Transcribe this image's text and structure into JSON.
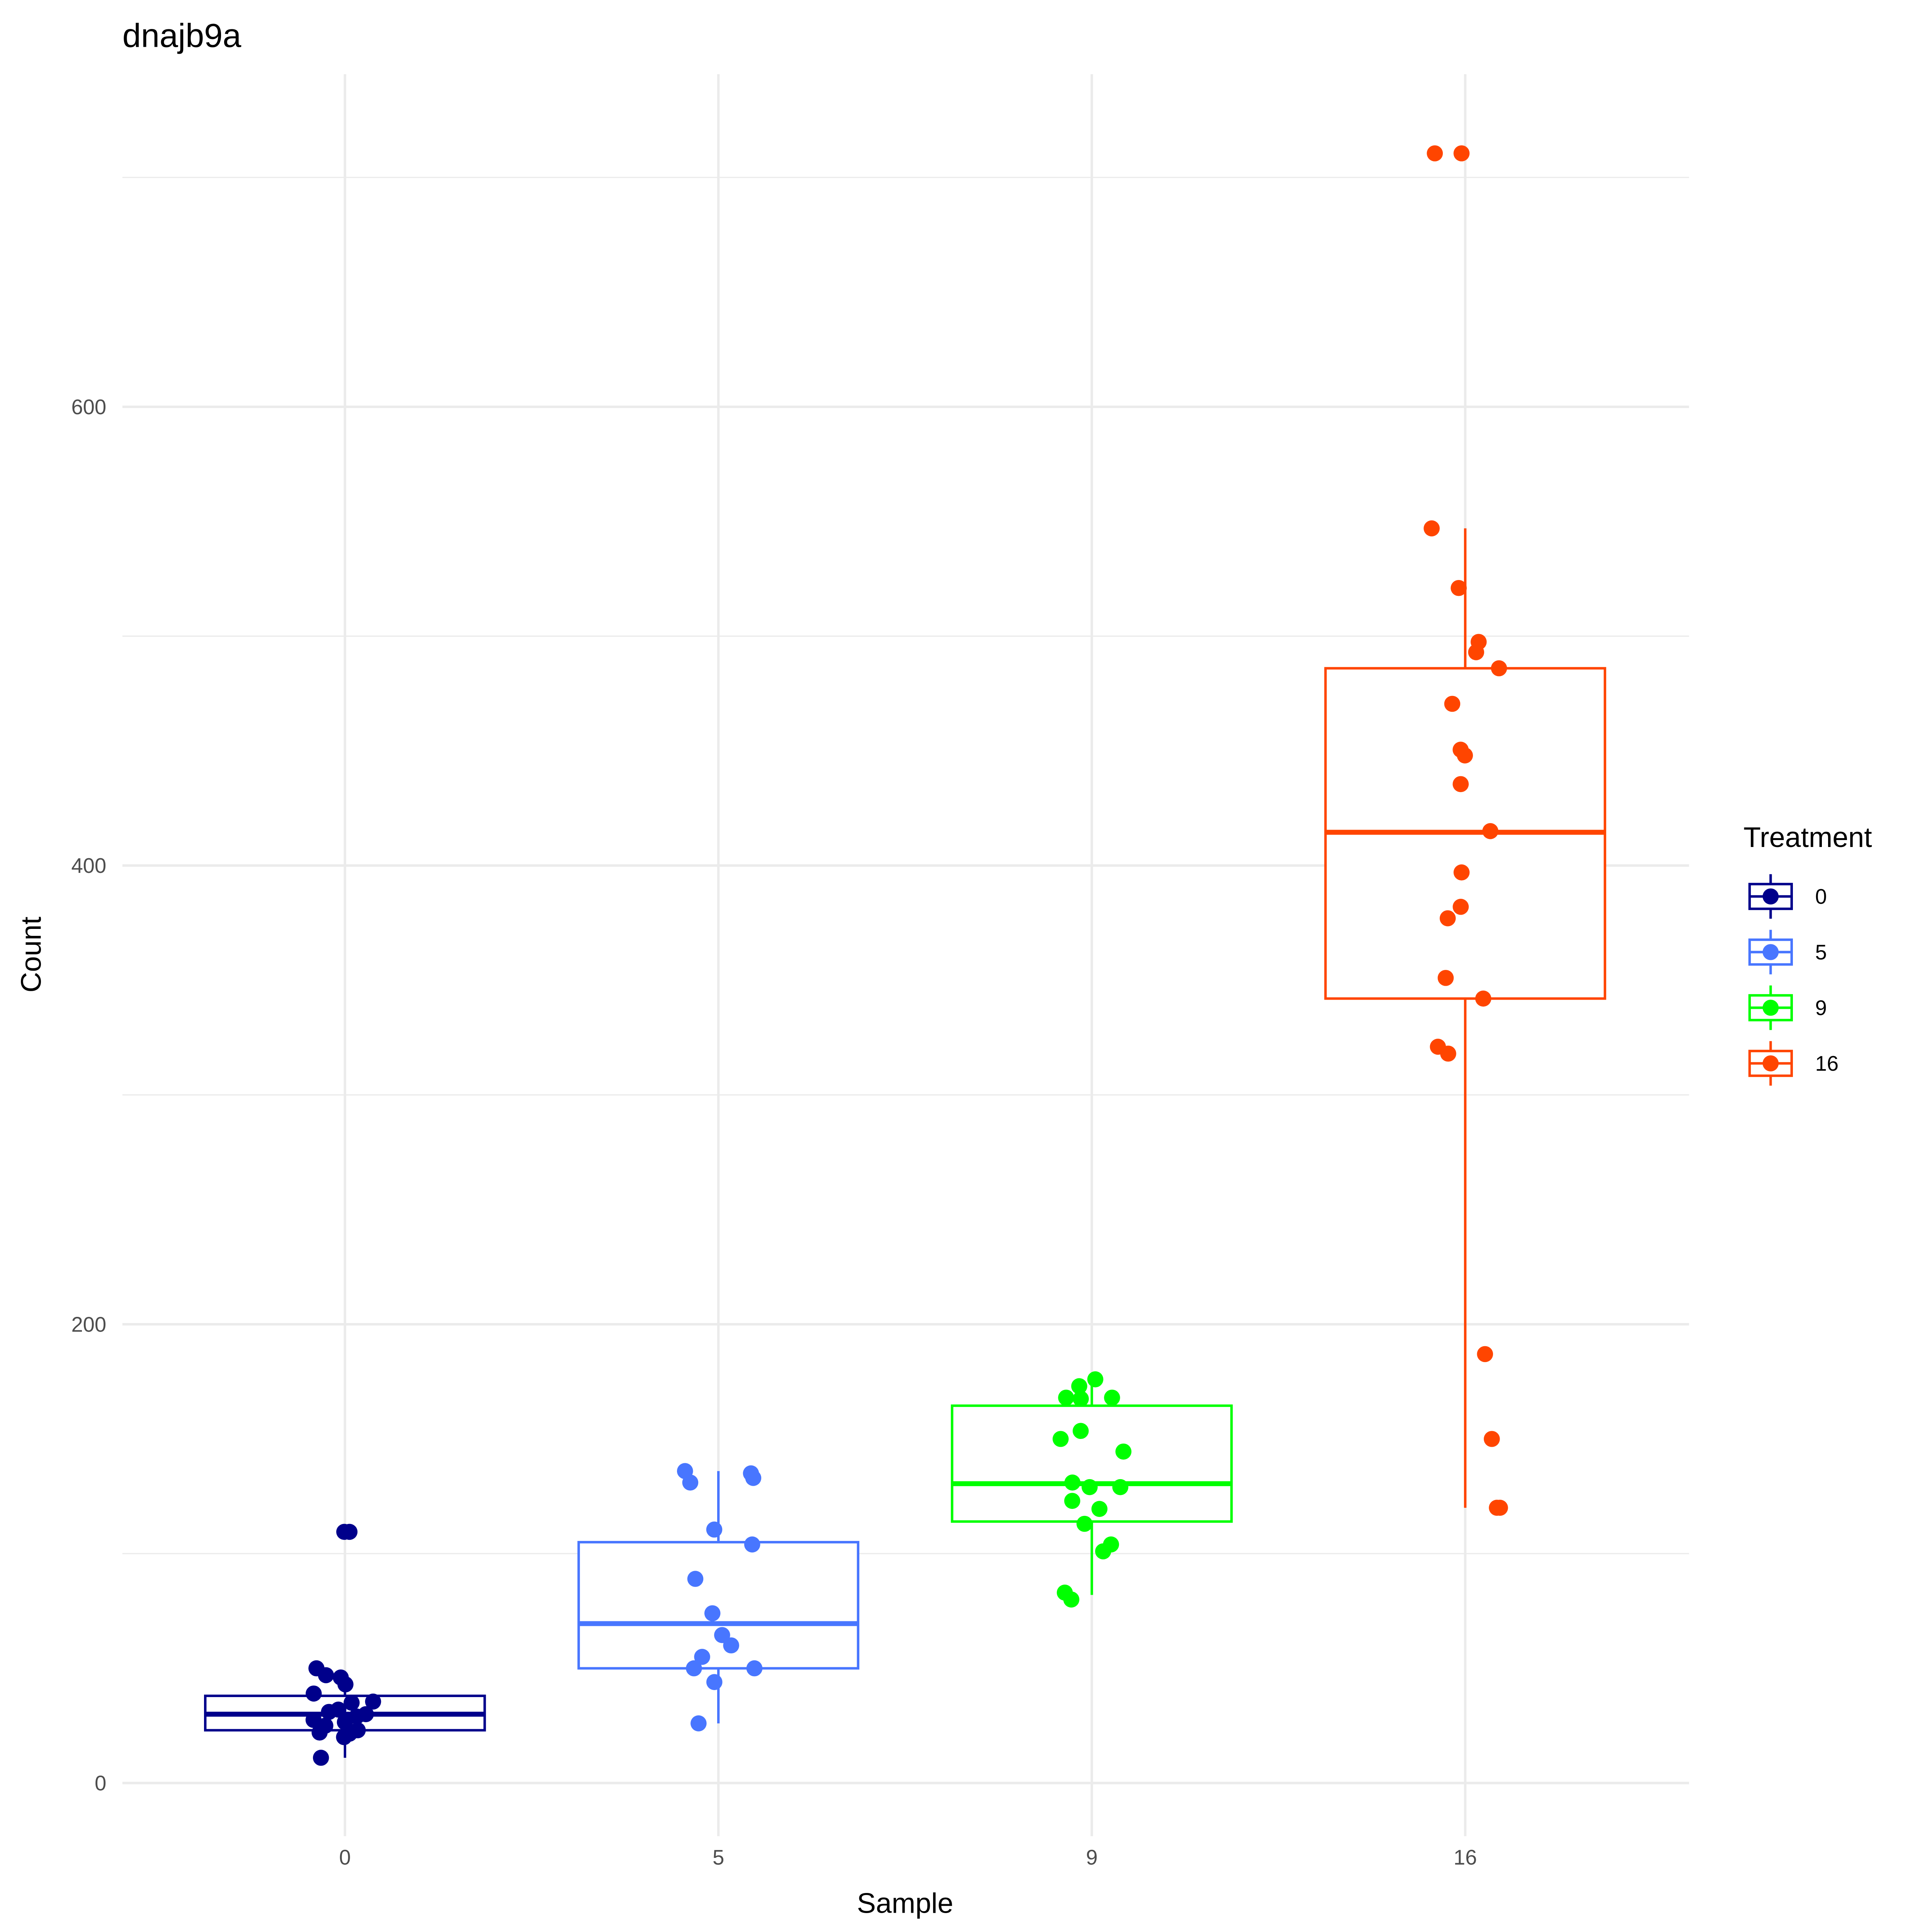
{
  "chart_data": {
    "type": "box",
    "title": "dnajb9a",
    "xlabel": "Sample",
    "ylabel": "Count",
    "ylim": [
      -25,
      765
    ],
    "y_major_ticks": [
      0,
      200,
      400,
      600
    ],
    "y_minor_ticks": [
      100,
      300,
      500,
      700
    ],
    "y_tick_labels": [
      "0",
      "200",
      "400",
      "600"
    ],
    "categories": [
      "0",
      "5",
      "9",
      "16"
    ],
    "grid": true,
    "legend": {
      "title": "Treatment",
      "position": "right",
      "entries": [
        "0",
        "5",
        "9",
        "16"
      ]
    },
    "series": [
      {
        "name": "0",
        "color": "#00008B",
        "box": {
          "lower_whisker": 11,
          "q1": 23,
          "median": 30,
          "q3": 38,
          "upper_whisker": 46
        },
        "points": [
          109.5,
          109.5,
          50,
          47,
          46,
          43,
          39,
          35.5,
          35,
          32,
          31,
          30,
          29,
          27.5,
          26.5,
          25,
          23,
          22,
          21.5,
          20,
          11
        ]
      },
      {
        "name": "5",
        "color": "#4876FF",
        "box": {
          "lower_whisker": 26,
          "q1": 50,
          "median": 69.5,
          "q3": 105,
          "upper_whisker": 136
        },
        "points": [
          136,
          135,
          133,
          131,
          110.5,
          104,
          89,
          74,
          64.5,
          60,
          55,
          50,
          50,
          44,
          26
        ]
      },
      {
        "name": "9",
        "color": "#00FF00",
        "box": {
          "lower_whisker": 82,
          "q1": 114,
          "median": 130.5,
          "q3": 164.5,
          "upper_whisker": 174.5
        },
        "points": [
          176,
          173,
          168,
          168,
          167.5,
          153.5,
          150,
          144.5,
          131,
          129,
          129,
          123,
          119.5,
          113,
          104,
          101,
          83,
          80
        ]
      },
      {
        "name": "16",
        "color": "#FF4500",
        "box": {
          "lower_whisker": 120,
          "q1": 342,
          "median": 414.5,
          "q3": 486,
          "upper_whisker": 547
        },
        "points": [
          710.5,
          710.5,
          547,
          521,
          497.5,
          493,
          486,
          470.5,
          450.5,
          448,
          435.5,
          415,
          397,
          382,
          377,
          351,
          342,
          321,
          318,
          187,
          150,
          120,
          120
        ]
      }
    ]
  }
}
